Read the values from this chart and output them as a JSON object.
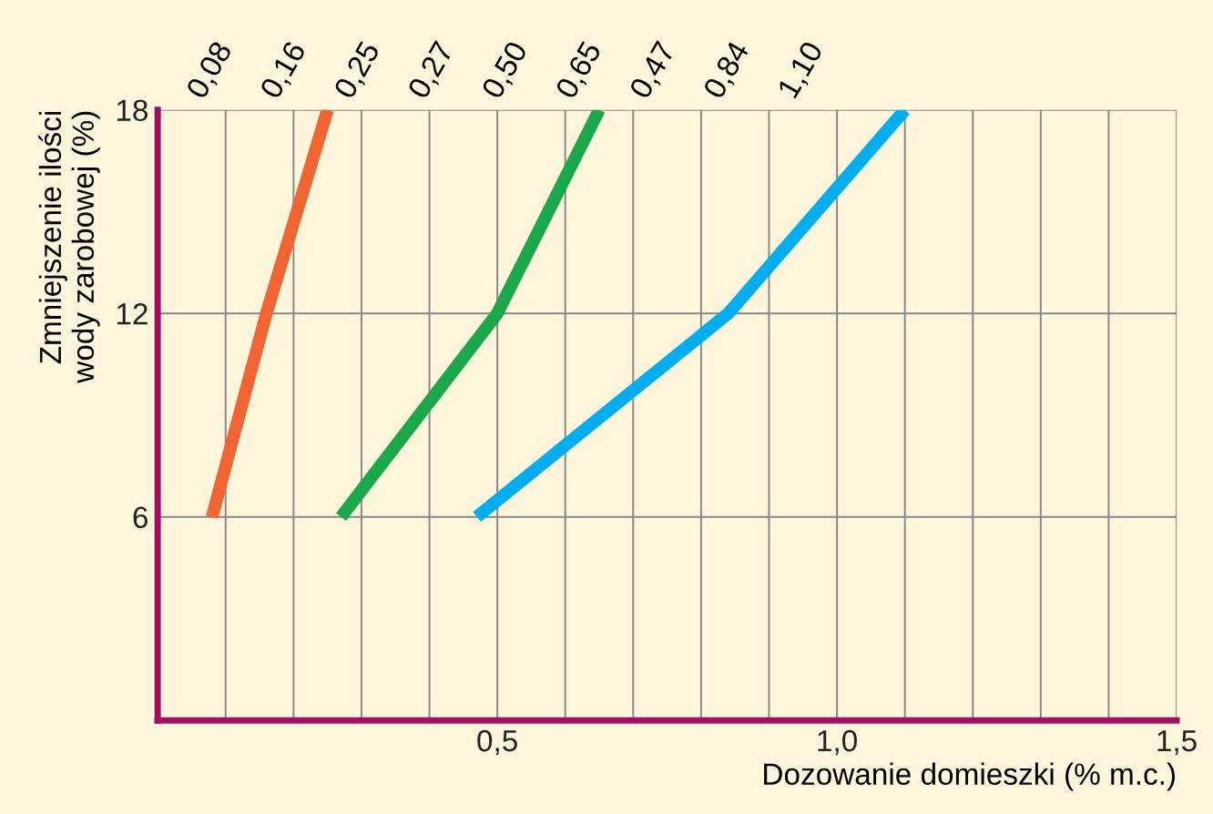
{
  "chart_data": {
    "type": "line",
    "xlabel": "Dozowanie domieszki (% m.c.)",
    "ylabel": "Zmniejszenie ilości\nwody zarobowej (%)",
    "series": [
      {
        "color": "#f26532",
        "x": [
          0.08,
          0.16,
          0.25
        ],
        "values": [
          6,
          12,
          18
        ]
      },
      {
        "color": "#1aa84a",
        "x": [
          0.27,
          0.5,
          0.65
        ],
        "values": [
          6,
          12,
          18
        ]
      },
      {
        "color": "#00aeef",
        "x": [
          0.47,
          0.84,
          1.1
        ],
        "values": [
          6,
          12,
          18
        ]
      }
    ],
    "annotations": [
      "0,08",
      "0,16",
      "0,25",
      "0,27",
      "0,50",
      "0,65",
      "0,47",
      "0,84",
      "1,10"
    ],
    "xlim": [
      0,
      1.5
    ],
    "ylim": [
      0,
      18
    ],
    "xticks": [
      {
        "value": 0.1,
        "label": null
      },
      {
        "value": 0.2,
        "label": null
      },
      {
        "value": 0.3,
        "label": null
      },
      {
        "value": 0.4,
        "label": null
      },
      {
        "value": 0.5,
        "label": "0,5"
      },
      {
        "value": 0.6,
        "label": null
      },
      {
        "value": 0.7,
        "label": null
      },
      {
        "value": 0.8,
        "label": null
      },
      {
        "value": 0.9,
        "label": null
      },
      {
        "value": 1.0,
        "label": "1,0"
      },
      {
        "value": 1.1,
        "label": null
      },
      {
        "value": 1.2,
        "label": null
      },
      {
        "value": 1.3,
        "label": null
      },
      {
        "value": 1.4,
        "label": null
      },
      {
        "value": 1.5,
        "label": "1,5"
      }
    ],
    "yticks": [
      6,
      12,
      18
    ],
    "grid": true,
    "line_style": "solid",
    "marker": "none"
  }
}
